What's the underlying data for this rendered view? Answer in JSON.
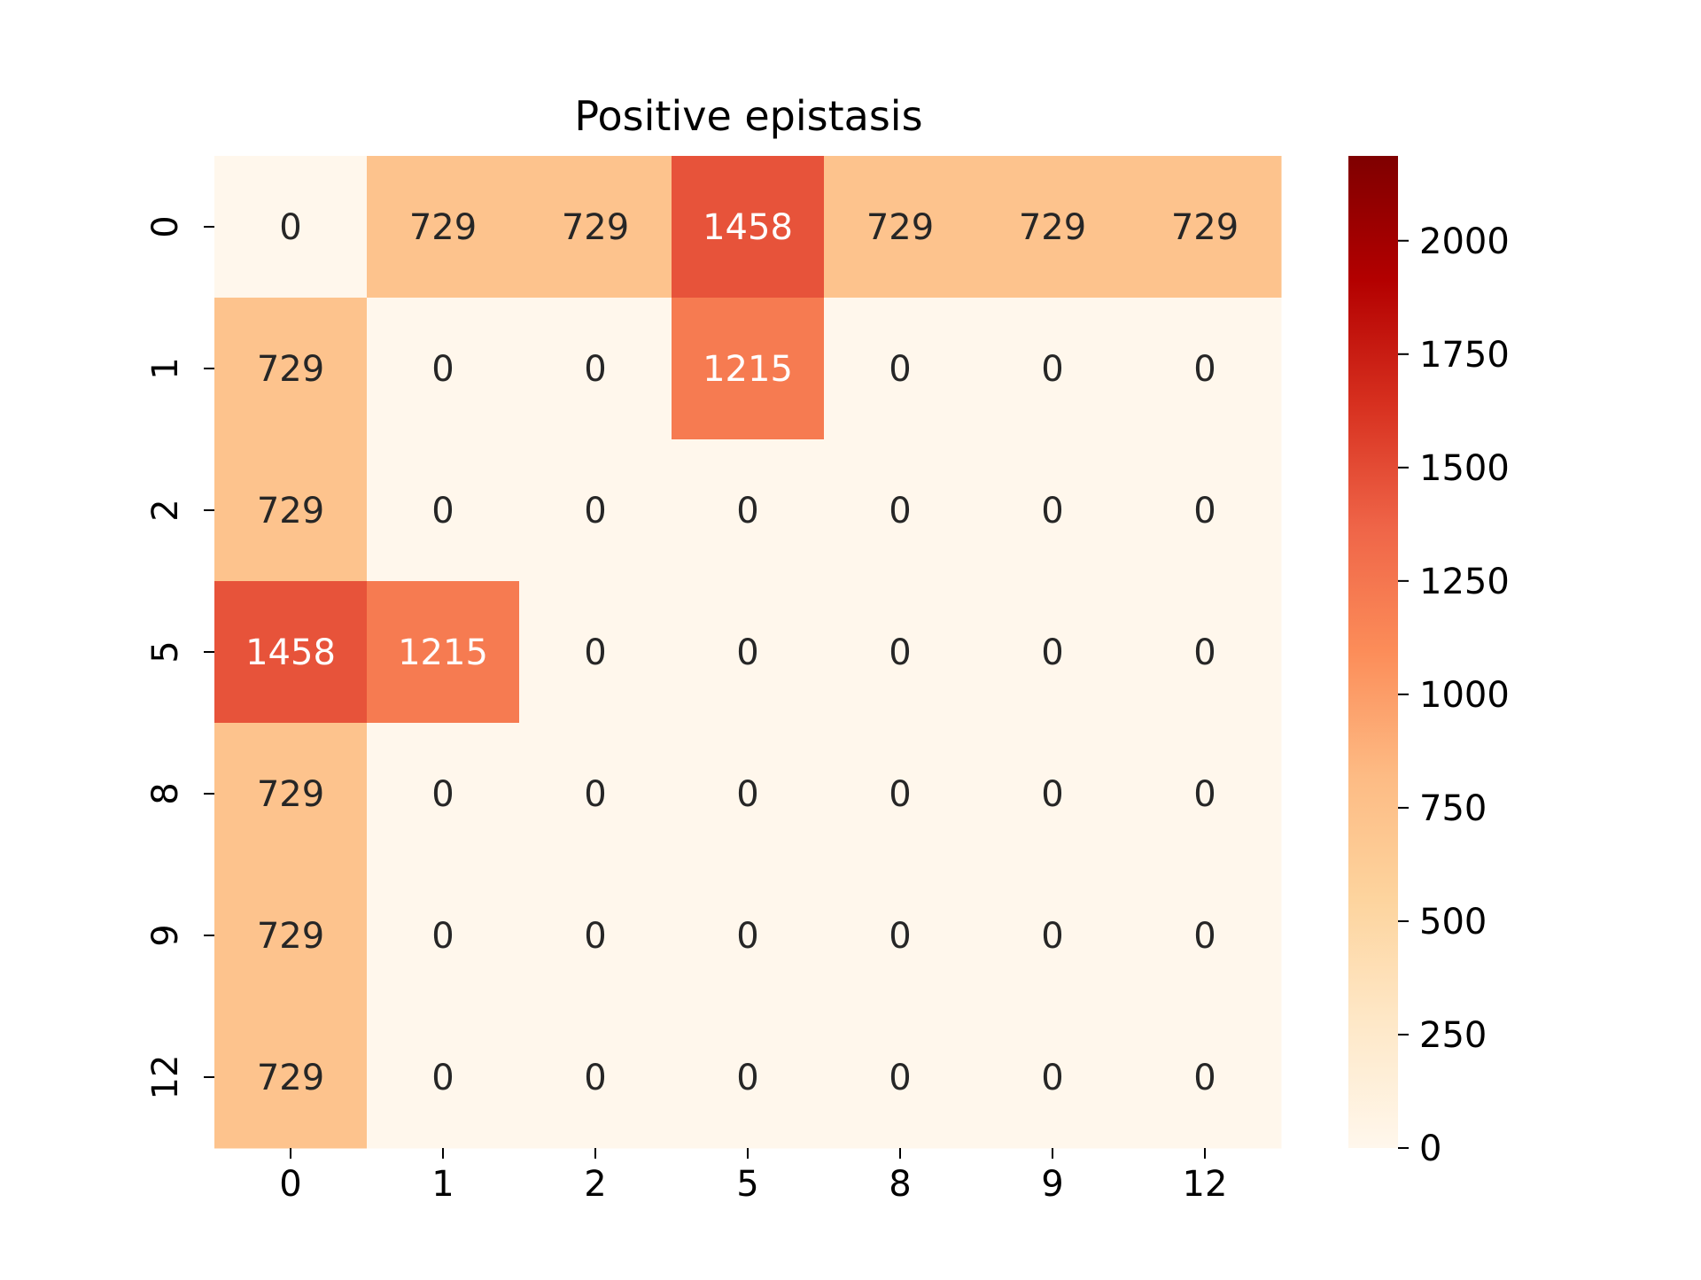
{
  "chart_data": {
    "type": "heatmap",
    "title": "Positive epistasis",
    "xlabel": "",
    "ylabel": "",
    "x_categories": [
      "0",
      "1",
      "2",
      "5",
      "8",
      "9",
      "12"
    ],
    "y_categories": [
      "0",
      "1",
      "2",
      "5",
      "8",
      "9",
      "12"
    ],
    "values": [
      [
        0,
        729,
        729,
        1458,
        729,
        729,
        729
      ],
      [
        729,
        0,
        0,
        1215,
        0,
        0,
        0
      ],
      [
        729,
        0,
        0,
        0,
        0,
        0,
        0
      ],
      [
        1458,
        1215,
        0,
        0,
        0,
        0,
        0
      ],
      [
        729,
        0,
        0,
        0,
        0,
        0,
        0
      ],
      [
        729,
        0,
        0,
        0,
        0,
        0,
        0
      ],
      [
        729,
        0,
        0,
        0,
        0,
        0,
        0
      ]
    ],
    "annotated": true,
    "colormap": "OrRd",
    "colorbar": {
      "vmin": 0,
      "vmax": 2187,
      "ticks": [
        0,
        250,
        500,
        750,
        1000,
        1250,
        1500,
        1750,
        2000
      ],
      "tick_labels": [
        "0",
        "250",
        "500",
        "750",
        "1000",
        "1250",
        "1500",
        "1750",
        "2000"
      ],
      "position": "right"
    },
    "colors": {
      "stops": [
        "#fff7ec",
        "#fee8c8",
        "#fdd49e",
        "#fdbb84",
        "#fc8d59",
        "#ef6548",
        "#d7301f",
        "#b30000",
        "#7f0000"
      ],
      "label_dark": "#262626",
      "label_light": "#ffffff"
    }
  }
}
